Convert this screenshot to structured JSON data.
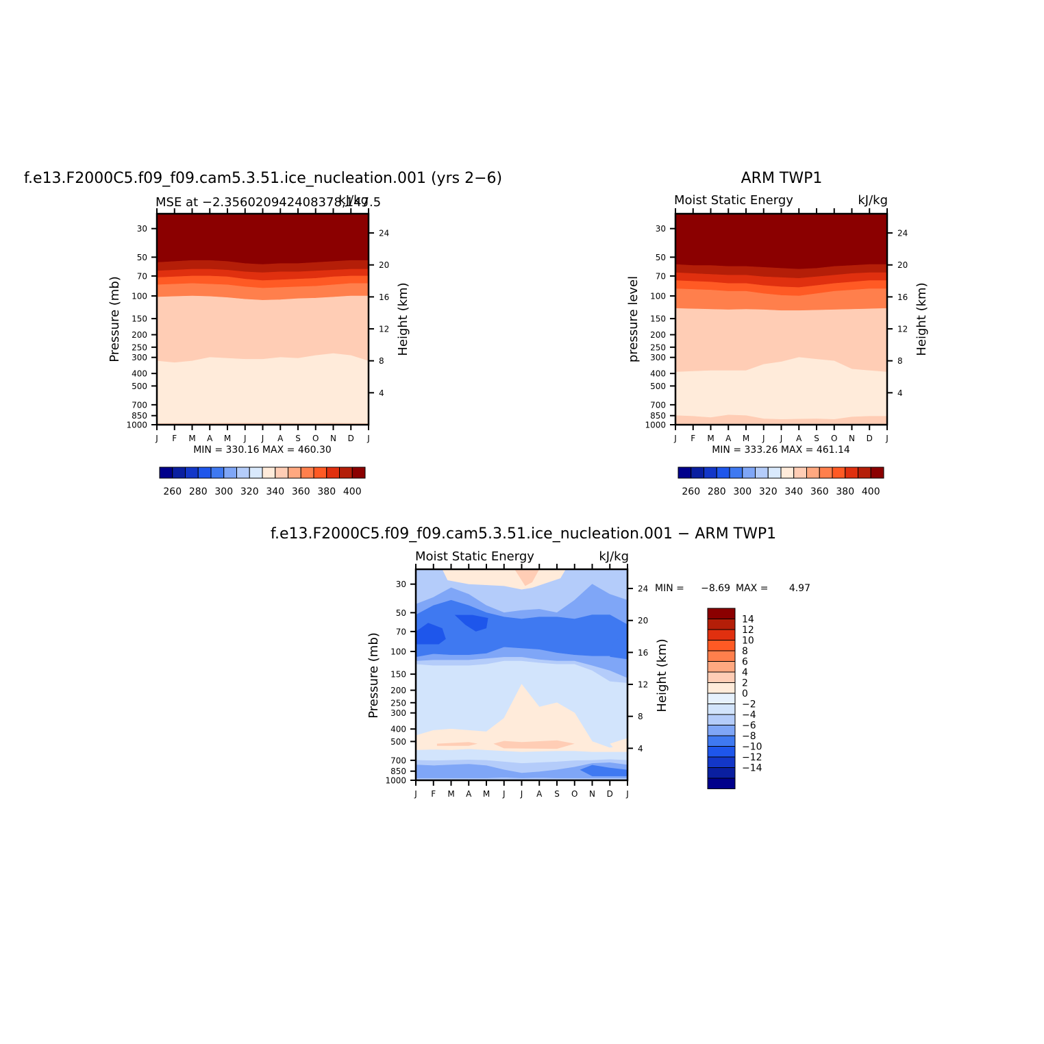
{
  "chart_data": [
    {
      "type": "heatmap",
      "title": "f.e13.F2000C5.f09_f09.cam5.3.51.ice_nucleation.001 (yrs 2−6)",
      "subtitle_left": "MSE at −2.356020942408378,147.5",
      "subtitle_right": "kJ/kg",
      "ylabel": "Pressure (mb)",
      "ylabel_right": "Height (km)",
      "x_ticks": [
        "J",
        "F",
        "M",
        "A",
        "M",
        "J",
        "J",
        "A",
        "S",
        "O",
        "N",
        "D",
        "J"
      ],
      "y_ticks": [
        "30",
        "50",
        "70",
        "100",
        "150",
        "200",
        "250",
        "300",
        "400",
        "500",
        "700",
        "850",
        "1000"
      ],
      "y_ticks_right": [
        "24",
        "20",
        "16",
        "12",
        "8",
        "4"
      ],
      "stats": "MIN = 330.16 MAX = 460.30",
      "colorbar_labels": [
        "260",
        "280",
        "300",
        "320",
        "340",
        "360",
        "380",
        "400"
      ],
      "levels_kJkg": [
        250,
        260,
        270,
        280,
        290,
        300,
        310,
        320,
        330,
        340,
        350,
        360,
        370,
        380,
        390,
        400,
        410
      ],
      "boundaries_hPa": {
        "b400": [
          55,
          54,
          53,
          53,
          54,
          56,
          57,
          56,
          56,
          55,
          54,
          53,
          53
        ],
        "b390": [
          64,
          63,
          62,
          62,
          63,
          65,
          66,
          65,
          65,
          64,
          63,
          62,
          62
        ],
        "b380": [
          72,
          71,
          70,
          70,
          71,
          74,
          76,
          75,
          74,
          73,
          71,
          70,
          70
        ],
        "b370": [
          82,
          81,
          80,
          81,
          82,
          85,
          87,
          86,
          85,
          84,
          82,
          80,
          80
        ],
        "b360": [
          102,
          101,
          100,
          101,
          103,
          106,
          108,
          107,
          105,
          104,
          102,
          100,
          100
        ],
        "b350": [
          320,
          330,
          320,
          300,
          305,
          310,
          310,
          300,
          305,
          290,
          280,
          290,
          320
        ],
        "b340": [
          980,
          975,
          975,
          975,
          970,
          970,
          970,
          970,
          975,
          975,
          970,
          975,
          980
        ]
      },
      "min": 330.16,
      "max": 460.3
    },
    {
      "type": "heatmap",
      "title": "ARM TWP1",
      "subtitle_left": "Moist Static Energy",
      "subtitle_right": "kJ/kg",
      "ylabel": "pressure level",
      "ylabel_right": "Height (km)",
      "x_ticks": [
        "J",
        "F",
        "M",
        "A",
        "M",
        "J",
        "J",
        "A",
        "S",
        "O",
        "N",
        "D",
        "J"
      ],
      "y_ticks": [
        "30",
        "50",
        "70",
        "100",
        "150",
        "200",
        "250",
        "300",
        "400",
        "500",
        "700",
        "850",
        "1000"
      ],
      "y_ticks_right": [
        "24",
        "20",
        "16",
        "12",
        "8",
        "4"
      ],
      "stats": "MIN = 333.26 MAX = 461.14",
      "colorbar_labels": [
        "260",
        "280",
        "300",
        "320",
        "340",
        "360",
        "380",
        "400"
      ],
      "boundaries_hPa": {
        "b400": [
          57,
          58,
          58,
          59,
          59,
          60,
          61,
          62,
          61,
          59,
          58,
          57,
          57
        ],
        "b390": [
          66,
          67,
          68,
          69,
          69,
          71,
          72,
          73,
          71,
          69,
          67,
          66,
          66
        ],
        "b380": [
          76,
          77,
          78,
          80,
          80,
          83,
          85,
          86,
          83,
          80,
          78,
          76,
          76
        ],
        "b370": [
          88,
          89,
          90,
          92,
          92,
          96,
          99,
          100,
          96,
          92,
          90,
          88,
          88
        ],
        "b360": [
          125,
          126,
          127,
          128,
          127,
          128,
          130,
          130,
          129,
          128,
          127,
          126,
          125
        ],
        "b350": [
          390,
          385,
          380,
          380,
          380,
          340,
          325,
          300,
          310,
          320,
          370,
          380,
          390
        ],
        "b340": [
          850,
          860,
          880,
          840,
          850,
          900,
          910,
          905,
          900,
          910,
          870,
          860,
          860
        ]
      },
      "min": 333.26,
      "max": 461.14
    },
    {
      "type": "heatmap",
      "title": "f.e13.F2000C5.f09_f09.cam5.3.51.ice_nucleation.001 − ARM TWP1",
      "subtitle_left": "Moist Static Energy",
      "subtitle_right": "kJ/kg",
      "ylabel": "Pressure (mb)",
      "ylabel_right": "Height (km)",
      "x_ticks": [
        "J",
        "F",
        "M",
        "A",
        "M",
        "J",
        "J",
        "A",
        "S",
        "O",
        "N",
        "D",
        "J"
      ],
      "y_ticks": [
        "30",
        "50",
        "70",
        "100",
        "150",
        "200",
        "250",
        "300",
        "400",
        "500",
        "700",
        "850",
        "1000"
      ],
      "y_ticks_right": [
        "24",
        "20",
        "16",
        "12",
        "8",
        "4"
      ],
      "stats_label": "MIN =",
      "stats_min_value": "−8.69",
      "stats_max_label": "MAX =",
      "stats_max_value": "4.97",
      "colorbar_labels": [
        "14",
        "12",
        "10",
        "8",
        "6",
        "4",
        "2",
        "0",
        "−2",
        "−4",
        "−6",
        "−8",
        "−10",
        "−12",
        "−14"
      ],
      "levels_kJkg": [
        -14,
        -12,
        -10,
        -8,
        -6,
        -4,
        -2,
        0,
        2,
        4,
        6,
        8,
        10,
        12,
        14
      ],
      "min": -8.69,
      "max": 4.97
    }
  ],
  "palette_warm": [
    "#00008B",
    "#0A1FA0",
    "#1337C8",
    "#1E56EB",
    "#3F79F1",
    "#7FA6F7",
    "#B4CCFA",
    "#D9E9FC",
    "#FFEBDA",
    "#FFCDB5",
    "#FFA880",
    "#FF7F4C",
    "#FF5A24",
    "#E0300F",
    "#B41E08",
    "#8B0000"
  ],
  "palette_diff": [
    "#8B0000",
    "#B41E08",
    "#E0300F",
    "#FF5A24",
    "#FF7F4C",
    "#FFA880",
    "#FFCDB5",
    "#FFEBDA",
    "#E6F1FD",
    "#D2E4FC",
    "#B4CCFA",
    "#7FA6F7",
    "#3F79F1",
    "#1E56EB",
    "#1337C8",
    "#0A1FA0",
    "#00008B"
  ]
}
